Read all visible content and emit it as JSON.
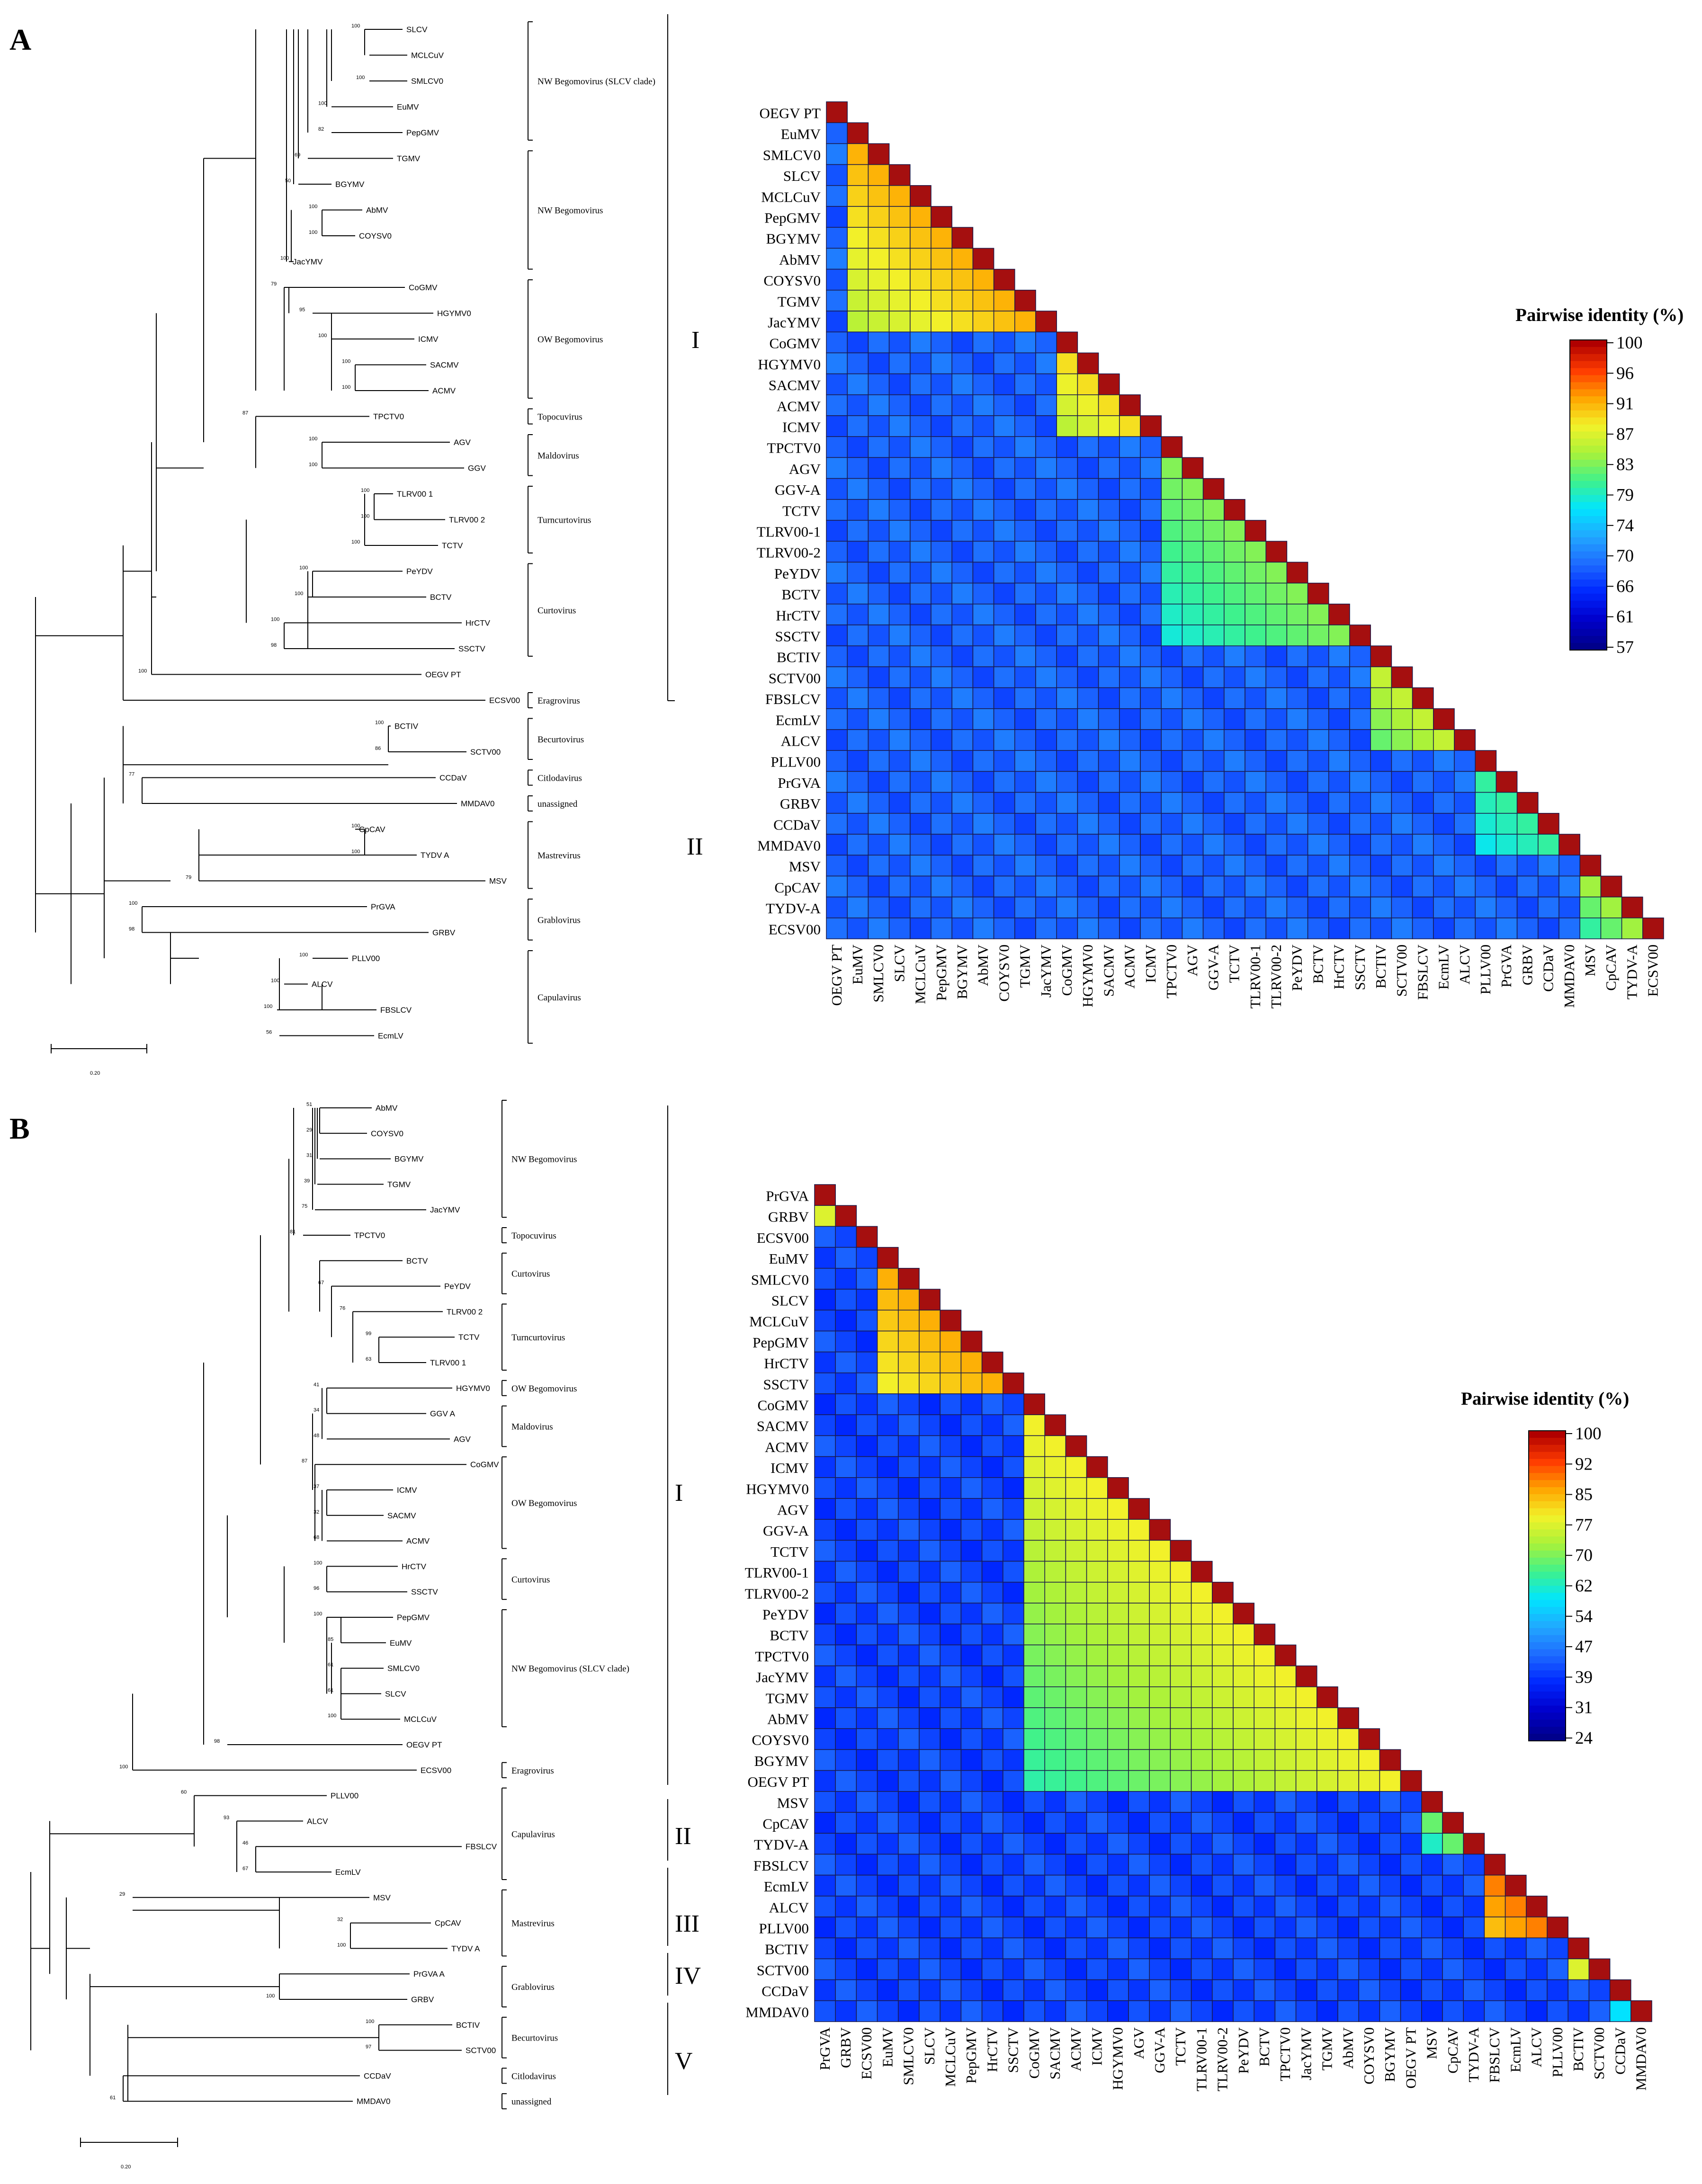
{
  "figure": {
    "panels": [
      {
        "id": "A",
        "letter": "A",
        "scale_label": "0.20",
        "tree": {
          "leaves": [
            {
              "name": "SLCV",
              "boot": "100"
            },
            {
              "name": "MCLCuV",
              "boot": ""
            },
            {
              "name": "SMLCV0",
              "boot": "100"
            },
            {
              "name": "EuMV",
              "boot": "100"
            },
            {
              "name": "PepGMV",
              "boot": "82"
            },
            {
              "name": "TGMV",
              "boot": "69"
            },
            {
              "name": "BGYMV",
              "boot": "50"
            },
            {
              "name": "AbMV",
              "boot": "100"
            },
            {
              "name": "COYSV0",
              "boot": "100"
            },
            {
              "name": "JacYMV",
              "boot": "100"
            },
            {
              "name": "CoGMV",
              "boot": "79"
            },
            {
              "name": "HGYMV0",
              "boot": "95"
            },
            {
              "name": "ICMV",
              "boot": "100"
            },
            {
              "name": "SACMV",
              "boot": "100"
            },
            {
              "name": "ACMV",
              "boot": "100"
            },
            {
              "name": "TPCTV0",
              "boot": "87"
            },
            {
              "name": "AGV",
              "boot": "100"
            },
            {
              "name": "GGV",
              "boot": "100"
            },
            {
              "name": "TLRV00 1",
              "boot": "100"
            },
            {
              "name": "TLRV00 2",
              "boot": "100"
            },
            {
              "name": "TCTV",
              "boot": "100"
            },
            {
              "name": "PeYDV",
              "boot": "100"
            },
            {
              "name": "BCTV",
              "boot": "100"
            },
            {
              "name": "HrCTV",
              "boot": "100"
            },
            {
              "name": "SSCTV",
              "boot": "98"
            },
            {
              "name": "OEGV PT",
              "boot": "100"
            },
            {
              "name": "ECSV00",
              "boot": ""
            },
            {
              "name": "BCTIV",
              "boot": "100"
            },
            {
              "name": "SCTV00",
              "boot": "86"
            },
            {
              "name": "CCDaV",
              "boot": "77"
            },
            {
              "name": "MMDAV0",
              "boot": ""
            },
            {
              "name": "CpCAV",
              "boot": "100"
            },
            {
              "name": "TYDV A",
              "boot": "100"
            },
            {
              "name": "MSV",
              "boot": "79"
            },
            {
              "name": "PrGVA",
              "boot": "100"
            },
            {
              "name": "GRBV",
              "boot": "98"
            },
            {
              "name": "PLLV00",
              "boot": "100"
            },
            {
              "name": "ALCV",
              "boot": "100"
            },
            {
              "name": "FBSLCV",
              "boot": "100"
            },
            {
              "name": "EcmLV",
              "boot": "56"
            }
          ],
          "clade_labels": [
            {
              "text": "NW Begomovirus (SLCV clade)"
            },
            {
              "text": "NW Begomovirus"
            },
            {
              "text": "OW Begomovirus"
            },
            {
              "text": "Topocuvirus"
            },
            {
              "text": "Maldovirus"
            },
            {
              "text": "Turncurtovirus"
            },
            {
              "text": "Curtovirus"
            },
            {
              "text": "Eragrovirus"
            },
            {
              "text": "Becurtovirus"
            },
            {
              "text": "Citlodavirus"
            },
            {
              "text": "unassigned"
            },
            {
              "text": "Mastrevirus"
            },
            {
              "text": "Grablovirus"
            },
            {
              "text": "Capulavirus"
            }
          ],
          "groups": [
            "I",
            "II"
          ]
        },
        "heatmap": {
          "labels": [
            "OEGV PT",
            "EuMV",
            "SMLCV0",
            "SLCV",
            "MCLCuV",
            "PepGMV",
            "BGYMV",
            "AbMV",
            "COYSV0",
            "TGMV",
            "JacYMV",
            "CoGMV",
            "HGYMV0",
            "SACMV",
            "ACMV",
            "ICMV",
            "TPCTV0",
            "AGV",
            "GGV-A",
            "TCTV",
            "TLRV00-1",
            "TLRV00-2",
            "PeYDV",
            "BCTV",
            "HrCTV",
            "SSCTV",
            "BCTIV",
            "SCTV00",
            "FBSLCV",
            "EcmLV",
            "ALCV",
            "PLLV00",
            "PrGVA",
            "GRBV",
            "CCDaV",
            "MMDAV0",
            "MSV",
            "CpCAV",
            "TYDV-A",
            "ECSV00"
          ],
          "legend_title": "Pairwise identity (%)",
          "legend_ticks": [
            "100",
            "96",
            "91",
            "87",
            "83",
            "79",
            "74",
            "70",
            "66",
            "61",
            "57"
          ]
        }
      },
      {
        "id": "B",
        "letter": "B",
        "scale_label": "0.20",
        "tree": {
          "leaves": [
            {
              "name": "AbMV",
              "boot": "51"
            },
            {
              "name": "COYSV0",
              "boot": "29"
            },
            {
              "name": "BGYMV",
              "boot": "31"
            },
            {
              "name": "TGMV",
              "boot": "39"
            },
            {
              "name": "JacYMV",
              "boot": "75"
            },
            {
              "name": "TPCTV0",
              "boot": "81"
            },
            {
              "name": "BCTV",
              "boot": ""
            },
            {
              "name": "PeYDV",
              "boot": "67"
            },
            {
              "name": "TLRV00 2",
              "boot": "76"
            },
            {
              "name": "TCTV",
              "boot": "99"
            },
            {
              "name": "TLRV00 1",
              "boot": "63"
            },
            {
              "name": "HGYMV0",
              "boot": "41"
            },
            {
              "name": "GGV A",
              "boot": "34"
            },
            {
              "name": "AGV",
              "boot": "48"
            },
            {
              "name": "CoGMV",
              "boot": "87"
            },
            {
              "name": "ICMV",
              "boot": "37"
            },
            {
              "name": "SACMV",
              "boot": "32"
            },
            {
              "name": "ACMV",
              "boot": "68"
            },
            {
              "name": "HrCTV",
              "boot": "100"
            },
            {
              "name": "SSCTV",
              "boot": "96"
            },
            {
              "name": "PepGMV",
              "boot": "100"
            },
            {
              "name": "EuMV",
              "boot": "85"
            },
            {
              "name": "SMLCV0",
              "boot": "61"
            },
            {
              "name": "SLCV",
              "boot": "61"
            },
            {
              "name": "MCLCuV",
              "boot": "100"
            },
            {
              "name": "OEGV PT",
              "boot": "98"
            },
            {
              "name": "ECSV00",
              "boot": "100"
            },
            {
              "name": "PLLV00",
              "boot": "60"
            },
            {
              "name": "ALCV",
              "boot": "93"
            },
            {
              "name": "FBSLCV",
              "boot": "46"
            },
            {
              "name": "EcmLV",
              "boot": "67"
            },
            {
              "name": "MSV",
              "boot": "29"
            },
            {
              "name": "CpCAV",
              "boot": "32"
            },
            {
              "name": "TYDV A",
              "boot": "100"
            },
            {
              "name": "PrGVA A",
              "boot": ""
            },
            {
              "name": "GRBV",
              "boot": "100"
            },
            {
              "name": "BCTIV",
              "boot": "100"
            },
            {
              "name": "SCTV00",
              "boot": "97"
            },
            {
              "name": "CCDaV",
              "boot": ""
            },
            {
              "name": "MMDAV0",
              "boot": "61"
            }
          ],
          "clade_labels": [
            {
              "text": "NW Begomovirus"
            },
            {
              "text": "Topocuvirus"
            },
            {
              "text": "Curtovirus"
            },
            {
              "text": "Turncurtovirus"
            },
            {
              "text": "OW Begomovirus"
            },
            {
              "text": "Maldovirus"
            },
            {
              "text": "OW Begomovirus"
            },
            {
              "text": "Curtovirus"
            },
            {
              "text": "NW Begomovirus (SLCV clade)"
            },
            {
              "text": "Eragrovirus"
            },
            {
              "text": "Capulavirus"
            },
            {
              "text": "Mastrevirus"
            },
            {
              "text": "Grablovirus"
            },
            {
              "text": "Becurtovirus"
            },
            {
              "text": "Citlodavirus"
            },
            {
              "text": "unassigned"
            }
          ],
          "groups": [
            "I",
            "II",
            "III",
            "IV",
            "V"
          ]
        },
        "heatmap": {
          "labels": [
            "PrGVA",
            "GRBV",
            "ECSV00",
            "EuMV",
            "SMLCV0",
            "SLCV",
            "MCLCuV",
            "PepGMV",
            "HrCTV",
            "SSCTV",
            "CoGMV",
            "SACMV",
            "ACMV",
            "ICMV",
            "HGYMV0",
            "AGV",
            "GGV-A",
            "TCTV",
            "TLRV00-1",
            "TLRV00-2",
            "PeYDV",
            "BCTV",
            "TPCTV0",
            "JacYMV",
            "TGMV",
            "AbMV",
            "COYSV0",
            "BGYMV",
            "OEGV PT",
            "MSV",
            "CpCAV",
            "TYDV-A",
            "FBSLCV",
            "EcmLV",
            "ALCV",
            "PLLV00",
            "BCTIV",
            "SCTV00",
            "CCDaV",
            "MMDAV0"
          ],
          "legend_title": "Pairwise identity (%)",
          "legend_ticks": [
            "100",
            "92",
            "85",
            "77",
            "70",
            "62",
            "54",
            "47",
            "39",
            "31",
            "24"
          ]
        }
      }
    ],
    "colors": {
      "diag": "#a50f0f",
      "scale": [
        "#00008b",
        "#0000cd",
        "#0028ff",
        "#1e6bff",
        "#21a8ff",
        "#00e5ff",
        "#3ef28c",
        "#a8f23a",
        "#f2f22a",
        "#ffa500",
        "#ff3c00",
        "#b00000"
      ]
    }
  }
}
